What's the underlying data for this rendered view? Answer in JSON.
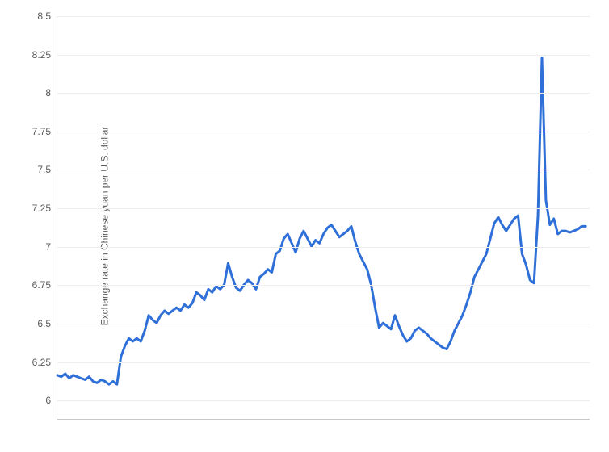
{
  "chart": {
    "type": "line",
    "y_axis_label": "Exchange rate in Chinese yuan per U.S. dollar",
    "y_axis_label_fontsize": 12,
    "ylim": [
      5.875,
      8.5
    ],
    "ytick_step": 0.25,
    "yticks": [
      "6",
      "6.25",
      "6.5",
      "6.75",
      "7",
      "7.25",
      "7.5",
      "7.75",
      "8",
      "8.25",
      "8.5"
    ],
    "xlim": [
      0,
      134
    ],
    "background_color": "#ffffff",
    "grid_color": "#ededed",
    "axis_color": "#c8c8c8",
    "tick_label_color": "#5a5a5a",
    "tick_label_fontsize": 12,
    "line_color": "#2f6fd8",
    "line_width": 3,
    "values": [
      6.16,
      6.15,
      6.17,
      6.14,
      6.16,
      6.15,
      6.14,
      6.13,
      6.15,
      6.12,
      6.11,
      6.13,
      6.12,
      6.1,
      6.12,
      6.1,
      6.28,
      6.35,
      6.4,
      6.38,
      6.4,
      6.38,
      6.45,
      6.55,
      6.52,
      6.5,
      6.55,
      6.58,
      6.56,
      6.58,
      6.6,
      6.58,
      6.62,
      6.6,
      6.63,
      6.7,
      6.68,
      6.65,
      6.72,
      6.7,
      6.74,
      6.72,
      6.75,
      6.89,
      6.8,
      6.73,
      6.71,
      6.75,
      6.78,
      6.76,
      6.72,
      6.8,
      6.82,
      6.85,
      6.83,
      6.95,
      6.97,
      7.05,
      7.08,
      7.02,
      6.96,
      7.05,
      7.1,
      7.05,
      7.0,
      7.04,
      7.02,
      7.08,
      7.12,
      7.14,
      7.1,
      7.06,
      7.08,
      7.1,
      7.13,
      7.03,
      6.95,
      6.9,
      6.85,
      6.75,
      6.6,
      6.47,
      6.5,
      6.48,
      6.46,
      6.55,
      6.48,
      6.42,
      6.38,
      6.4,
      6.45,
      6.47,
      6.45,
      6.43,
      6.4,
      6.38,
      6.36,
      6.34,
      6.33,
      6.38,
      6.45,
      6.5,
      6.55,
      6.62,
      6.7,
      6.8,
      6.85,
      6.9,
      6.95,
      7.05,
      7.15,
      7.19,
      7.14,
      7.1,
      7.14,
      7.18,
      7.2,
      6.95,
      6.88,
      6.78,
      6.76,
      7.2,
      8.23,
      7.3,
      7.14,
      7.18,
      7.08,
      7.1,
      7.1,
      7.09,
      7.1,
      7.11,
      7.13,
      7.13
    ]
  }
}
